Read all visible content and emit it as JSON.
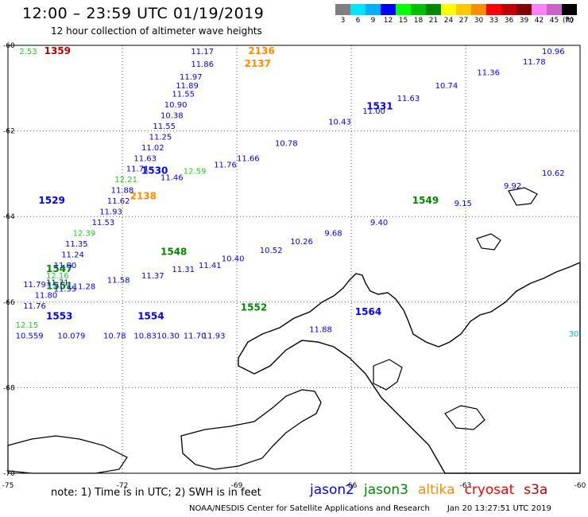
{
  "header": {
    "title": "12:00 – 23:59 UTC 01/19/2019",
    "subtitle": "12 hour collection of altimeter wave heights"
  },
  "colorbar": {
    "colors": [
      "#7f7f7f",
      "#00e5ff",
      "#00b0ff",
      "#0000ff",
      "#00ff00",
      "#00c000",
      "#008800",
      "#ffff00",
      "#ffc800",
      "#ff8c00",
      "#ff0000",
      "#c00000",
      "#800000",
      "#ff80ff",
      "#c864c8",
      "#000000"
    ],
    "labels": [
      "3",
      "6",
      "9",
      "12",
      "15",
      "18",
      "21",
      "24",
      "27",
      "30",
      "33",
      "36",
      "39",
      "42",
      "45",
      "70"
    ],
    "unit": "(ft)"
  },
  "map": {
    "lon_range": [
      -75,
      -60
    ],
    "lat_range": [
      -70,
      -60
    ],
    "lon_ticks": [
      -75,
      -72,
      -69,
      -66,
      -63,
      -60
    ],
    "lat_ticks": [
      -60,
      -62,
      -64,
      -66,
      -68,
      -70
    ],
    "grid": true,
    "track_labels": [
      {
        "text": "1359",
        "color": "#c00000",
        "lon": -74.05,
        "lat": -60.2
      },
      {
        "text": "2.53",
        "color": "#22cc22",
        "lon": -74.7,
        "lat": -60.2
      },
      {
        "text": "2136",
        "color": "#ff8c00",
        "lon": -68.7,
        "lat": -60.2
      },
      {
        "text": "2137",
        "color": "#ff8c00",
        "lon": -68.8,
        "lat": -60.5
      },
      {
        "text": "2138",
        "color": "#ff8c00",
        "lon": -71.8,
        "lat": -63.6
      },
      {
        "text": "1531",
        "color": "#0000ff",
        "lon": -65.6,
        "lat": -61.5
      },
      {
        "text": "1530",
        "color": "#0000ff",
        "lon": -71.5,
        "lat": -63.0
      },
      {
        "text": "1529",
        "color": "#0000ff",
        "lon": -74.2,
        "lat": -63.7
      },
      {
        "text": "1549",
        "color": "#008800",
        "lon": -64.4,
        "lat": -63.7
      },
      {
        "text": "1548",
        "color": "#008800",
        "lon": -71.0,
        "lat": -64.9
      },
      {
        "text": "1547",
        "color": "#008800",
        "lon": -74.0,
        "lat": -65.3
      },
      {
        "text": "1551",
        "color": "#008800",
        "lon": -74.0,
        "lat": -65.7
      },
      {
        "text": "1552",
        "color": "#008800",
        "lon": -68.9,
        "lat": -66.2
      },
      {
        "text": "1553",
        "color": "#0000ff",
        "lon": -74.0,
        "lat": -66.4
      },
      {
        "text": "1554",
        "color": "#0000ff",
        "lon": -71.6,
        "lat": -66.4
      },
      {
        "text": "1564",
        "color": "#0000ff",
        "lon": -65.9,
        "lat": -66.3
      },
      {
        "text": "11.17",
        "color": "#0000ff",
        "lon": -70.2,
        "lat": -60.2
      },
      {
        "text": "11.86",
        "color": "#0000ff",
        "lon": -70.2,
        "lat": -60.5
      },
      {
        "text": "11.97",
        "color": "#0000ff",
        "lon": -70.5,
        "lat": -60.8
      },
      {
        "text": "11.89",
        "color": "#0000ff",
        "lon": -70.6,
        "lat": -61.0
      },
      {
        "text": "11.55",
        "color": "#0000ff",
        "lon": -70.7,
        "lat": -61.2
      },
      {
        "text": "10.90",
        "color": "#0000ff",
        "lon": -70.9,
        "lat": -61.45
      },
      {
        "text": "10.38",
        "color": "#0000ff",
        "lon": -71.0,
        "lat": -61.7
      },
      {
        "text": "11.55",
        "color": "#0000ff",
        "lon": -71.2,
        "lat": -61.95
      },
      {
        "text": "11.25",
        "color": "#0000ff",
        "lon": -71.3,
        "lat": -62.2
      },
      {
        "text": "11.02",
        "color": "#0000ff",
        "lon": -71.5,
        "lat": -62.45
      },
      {
        "text": "11.63",
        "color": "#0000ff",
        "lon": -71.7,
        "lat": -62.7
      },
      {
        "text": "11.71",
        "color": "#0000ff",
        "lon": -71.9,
        "lat": -62.95
      },
      {
        "text": "12.21",
        "color": "#22cc22",
        "lon": -72.2,
        "lat": -63.2
      },
      {
        "text": "11.88",
        "color": "#0000ff",
        "lon": -72.3,
        "lat": -63.45
      },
      {
        "text": "11.62",
        "color": "#0000ff",
        "lon": -72.4,
        "lat": -63.7
      },
      {
        "text": "11.93",
        "color": "#0000ff",
        "lon": -72.6,
        "lat": -63.95
      },
      {
        "text": "11.53",
        "color": "#0000ff",
        "lon": -72.8,
        "lat": -64.2
      },
      {
        "text": "12.39",
        "color": "#22cc22",
        "lon": -73.3,
        "lat": -64.45
      },
      {
        "text": "11.35",
        "color": "#0000ff",
        "lon": -73.5,
        "lat": -64.7
      },
      {
        "text": "11.24",
        "color": "#0000ff",
        "lon": -73.6,
        "lat": -64.95
      },
      {
        "text": "11.80",
        "color": "#0000ff",
        "lon": -73.8,
        "lat": -65.2
      },
      {
        "text": "12.16",
        "color": "#22cc22",
        "lon": -74.0,
        "lat": -65.45
      },
      {
        "text": "11.79",
        "color": "#0000ff",
        "lon": -74.6,
        "lat": -65.65
      },
      {
        "text": "11.80",
        "color": "#0000ff",
        "lon": -74.3,
        "lat": -65.9
      },
      {
        "text": "12.15",
        "color": "#22cc22",
        "lon": -74.8,
        "lat": -66.6
      },
      {
        "text": "10.559",
        "color": "#0000ff",
        "lon": -74.8,
        "lat": -66.85
      },
      {
        "text": "10.96",
        "color": "#0000ff",
        "lon": -61.0,
        "lat": -60.2
      },
      {
        "text": "11.78",
        "color": "#0000ff",
        "lon": -61.5,
        "lat": -60.45
      },
      {
        "text": "11.36",
        "color": "#0000ff",
        "lon": -62.7,
        "lat": -60.7
      },
      {
        "text": "10.74",
        "color": "#0000ff",
        "lon": -63.8,
        "lat": -61.0
      },
      {
        "text": "11.63",
        "color": "#0000ff",
        "lon": -64.8,
        "lat": -61.3
      },
      {
        "text": "11.00",
        "color": "#0000ff",
        "lon": -65.7,
        "lat": -61.6
      },
      {
        "text": "10.43",
        "color": "#0000ff",
        "lon": -66.6,
        "lat": -61.85
      },
      {
        "text": "10.78",
        "color": "#0000ff",
        "lon": -68.0,
        "lat": -62.35
      },
      {
        "text": "11.66",
        "color": "#0000ff",
        "lon": -69.0,
        "lat": -62.7
      },
      {
        "text": "11.76",
        "color": "#0000ff",
        "lon": -69.6,
        "lat": -62.85
      },
      {
        "text": "12.59",
        "color": "#22cc22",
        "lon": -70.4,
        "lat": -63.0
      },
      {
        "text": "11.46",
        "color": "#0000ff",
        "lon": -71.0,
        "lat": -63.15
      },
      {
        "text": "10.62",
        "color": "#0000ff",
        "lon": -61.0,
        "lat": -63.05
      },
      {
        "text": "9.92",
        "color": "#0000ff",
        "lon": -62.0,
        "lat": -63.35
      },
      {
        "text": "9.15",
        "color": "#0000ff",
        "lon": -63.3,
        "lat": -63.75
      },
      {
        "text": "9.40",
        "color": "#0000ff",
        "lon": -65.5,
        "lat": -64.2
      },
      {
        "text": "9.68",
        "color": "#0000ff",
        "lon": -66.7,
        "lat": -64.45
      },
      {
        "text": "10.26",
        "color": "#0000ff",
        "lon": -67.6,
        "lat": -64.65
      },
      {
        "text": "10.52",
        "color": "#0000ff",
        "lon": -68.4,
        "lat": -64.85
      },
      {
        "text": "10.40",
        "color": "#0000ff",
        "lon": -69.4,
        "lat": -65.05
      },
      {
        "text": "11.41",
        "color": "#0000ff",
        "lon": -70.0,
        "lat": -65.2
      },
      {
        "text": "11.31",
        "color": "#0000ff",
        "lon": -70.7,
        "lat": -65.3
      },
      {
        "text": "11.37",
        "color": "#0000ff",
        "lon": -71.5,
        "lat": -65.45
      },
      {
        "text": "11.58",
        "color": "#0000ff",
        "lon": -72.4,
        "lat": -65.55
      },
      {
        "text": "11.28",
        "color": "#0000ff",
        "lon": -73.3,
        "lat": -65.7
      },
      {
        "text": "11.55",
        "color": "#0000ff",
        "lon": -73.8,
        "lat": -65.75
      },
      {
        "text": "11.88",
        "color": "#0000ff",
        "lon": -67.1,
        "lat": -66.7
      },
      {
        "text": "11.93",
        "color": "#0000ff",
        "lon": -69.9,
        "lat": -66.85
      },
      {
        "text": "11.70",
        "color": "#0000ff",
        "lon": -70.4,
        "lat": -66.85
      },
      {
        "text": "10.30",
        "color": "#0000ff",
        "lon": -71.1,
        "lat": -66.85
      },
      {
        "text": "10.83",
        "color": "#0000ff",
        "lon": -71.7,
        "lat": -66.85
      },
      {
        "text": "10.78",
        "color": "#0000ff",
        "lon": -72.5,
        "lat": -66.85
      },
      {
        "text": "10.079",
        "color": "#0000ff",
        "lon": -73.7,
        "lat": -66.85
      },
      {
        "text": "30.",
        "color": "#00b0ff",
        "lon": -60.3,
        "lat": -66.8
      },
      {
        "text": "11.76",
        "color": "#0000ff",
        "lon": -74.6,
        "lat": -66.15
      },
      {
        "text": "11.71",
        "color": "#0000ff",
        "lon": -74.0,
        "lat": -65.6
      }
    ]
  },
  "footer": {
    "note": "note:  1) Time is in UTC;  2) SWH is in feet",
    "satellites": [
      {
        "name": "jason2",
        "color": "#0000ff"
      },
      {
        "name": "jason3",
        "color": "#008800"
      },
      {
        "name": "altika",
        "color": "#ff8c00"
      },
      {
        "name": "cryosat",
        "color": "#ff0000"
      },
      {
        "name": "s3a",
        "color": "#c00000"
      }
    ],
    "credit": "NOAA/NESDIS Center for Satellite Applications and Research",
    "timestamp": "Jan 20 13:27:51 UTC 2019"
  }
}
